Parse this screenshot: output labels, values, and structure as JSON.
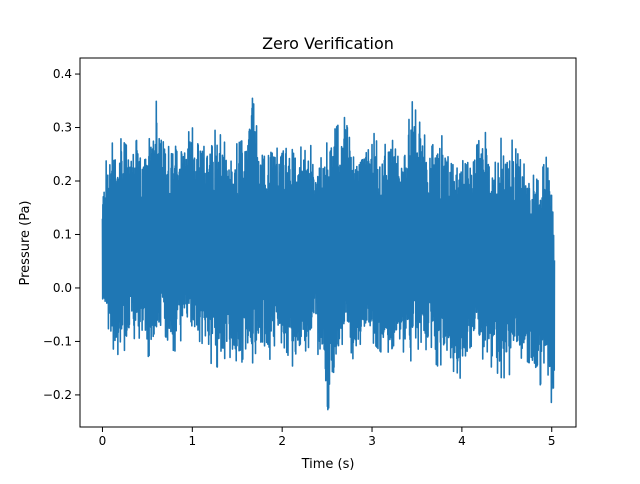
{
  "chart_data": {
    "type": "line",
    "title": "Zero Verification",
    "xlabel": "Time (s)",
    "ylabel": "Pressure (Pa)",
    "xlim": [
      -0.25,
      5.27
    ],
    "ylim": [
      -0.26,
      0.43
    ],
    "xticks": [
      0,
      1,
      2,
      3,
      4,
      5
    ],
    "xtick_labels": [
      "0",
      "1",
      "2",
      "3",
      "4",
      "5"
    ],
    "yticks": [
      -0.2,
      -0.1,
      0.0,
      0.1,
      0.2,
      0.3,
      0.4
    ],
    "ytick_labels": [
      "−0.2",
      "−0.1",
      "0.0",
      "0.1",
      "0.2",
      "0.3",
      "0.4"
    ],
    "grid": false,
    "series": [
      {
        "color": "#1f77b4",
        "x_range": [
          0,
          5.03
        ],
        "envelope": {
          "t": [
            0.0,
            0.05,
            0.1,
            0.2,
            0.3,
            0.4,
            0.5,
            0.6,
            0.7,
            0.8,
            0.9,
            1.0,
            1.1,
            1.2,
            1.3,
            1.4,
            1.5,
            1.6,
            1.67,
            1.75,
            1.85,
            1.95,
            2.05,
            2.15,
            2.25,
            2.35,
            2.45,
            2.51,
            2.6,
            2.7,
            2.8,
            2.9,
            3.0,
            3.1,
            3.2,
            3.3,
            3.35,
            3.45,
            3.55,
            3.65,
            3.75,
            3.85,
            3.95,
            4.05,
            4.15,
            4.25,
            4.35,
            4.45,
            4.55,
            4.65,
            4.75,
            4.85,
            4.95,
            5.0,
            5.03
          ],
          "upper": [
            0.18,
            0.25,
            0.27,
            0.28,
            0.26,
            0.28,
            0.26,
            0.35,
            0.25,
            0.29,
            0.28,
            0.3,
            0.25,
            0.3,
            0.29,
            0.26,
            0.27,
            0.28,
            0.4,
            0.27,
            0.28,
            0.26,
            0.29,
            0.24,
            0.28,
            0.26,
            0.24,
            0.28,
            0.3,
            0.32,
            0.24,
            0.26,
            0.3,
            0.25,
            0.29,
            0.24,
            0.26,
            0.35,
            0.3,
            0.26,
            0.29,
            0.27,
            0.25,
            0.23,
            0.26,
            0.3,
            0.22,
            0.29,
            0.28,
            0.24,
            0.22,
            0.2,
            0.25,
            0.21,
            0.12
          ],
          "lower": [
            -0.03,
            -0.06,
            -0.11,
            -0.13,
            -0.1,
            -0.09,
            -0.13,
            -0.11,
            -0.09,
            -0.12,
            -0.09,
            -0.1,
            -0.1,
            -0.14,
            -0.15,
            -0.12,
            -0.17,
            -0.11,
            -0.17,
            -0.12,
            -0.14,
            -0.09,
            -0.12,
            -0.16,
            -0.12,
            -0.1,
            -0.15,
            -0.23,
            -0.16,
            -0.08,
            -0.14,
            -0.09,
            -0.1,
            -0.12,
            -0.12,
            -0.09,
            -0.12,
            -0.14,
            -0.1,
            -0.13,
            -0.15,
            -0.11,
            -0.19,
            -0.12,
            -0.1,
            -0.14,
            -0.15,
            -0.17,
            -0.16,
            -0.13,
            -0.14,
            -0.19,
            -0.15,
            -0.22,
            -0.2
          ]
        }
      }
    ]
  }
}
